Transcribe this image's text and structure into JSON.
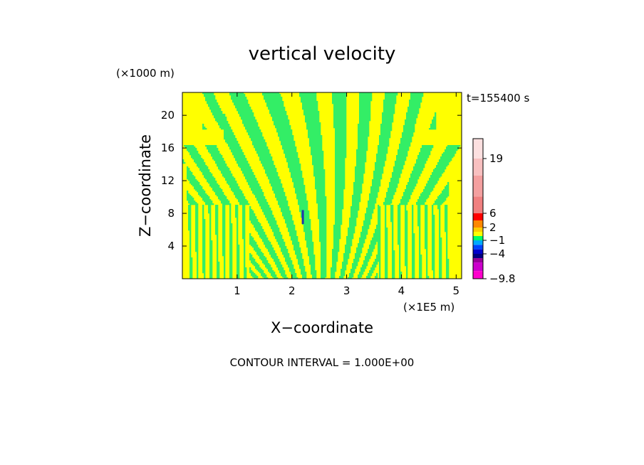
{
  "chart_data": {
    "type": "heatmap",
    "title": "vertical velocity",
    "xlabel": "X−coordinate",
    "ylabel": "Z−coordinate",
    "x_unit": "(×1E5 m)",
    "y_unit": "(×1000 m)",
    "time_label": "t=155400 s",
    "footer": "CONTOUR INTERVAL = 1.000E+00",
    "xlim": [
      0,
      5.1
    ],
    "ylim": [
      0,
      22.8
    ],
    "x_ticks": [
      {
        "value": 1,
        "label": "1"
      },
      {
        "value": 2,
        "label": "2"
      },
      {
        "value": 3,
        "label": "3"
      },
      {
        "value": 4,
        "label": "4"
      },
      {
        "value": 5,
        "label": "5"
      }
    ],
    "y_ticks": [
      {
        "value": 4,
        "label": "4"
      },
      {
        "value": 8,
        "label": "8"
      },
      {
        "value": 12,
        "label": "12"
      },
      {
        "value": 16,
        "label": "16"
      },
      {
        "value": 20,
        "label": "20"
      }
    ],
    "colorbar": {
      "levels": [
        {
          "value": -9.8,
          "color": "#ff00cc"
        },
        {
          "value": -8,
          "color": "#cc00cc"
        },
        {
          "value": -6,
          "color": "#990099"
        },
        {
          "value": -5,
          "color": "#000080"
        },
        {
          "value": -4,
          "color": "#0000cc"
        },
        {
          "value": -3,
          "color": "#0044ff"
        },
        {
          "value": -2,
          "color": "#00aaff"
        },
        {
          "value": -1,
          "color": "#00ff66"
        },
        {
          "value": 0,
          "color": "#ffff00"
        },
        {
          "value": 1,
          "color": "#ffcc00"
        },
        {
          "value": 2,
          "color": "#ff8800"
        },
        {
          "value": 4,
          "color": "#ff0000"
        },
        {
          "value": 6,
          "color": "#f08080"
        },
        {
          "value": 10,
          "color": "#f4a0a0"
        },
        {
          "value": 15,
          "color": "#f8c0c0"
        },
        {
          "value": 19,
          "color": "#fce0e0"
        },
        {
          "value": 24,
          "color": "#fff0f0"
        }
      ],
      "tick_labels": [
        "19",
        "6",
        "2",
        "−1",
        "−4",
        "−9.8"
      ],
      "tick_values": [
        19,
        6,
        2,
        -1,
        -4,
        -9.8
      ]
    },
    "field_colors": {
      "positive": "#ffff00",
      "negative": "#33ee66",
      "strong_negative": "#2233aa"
    }
  }
}
